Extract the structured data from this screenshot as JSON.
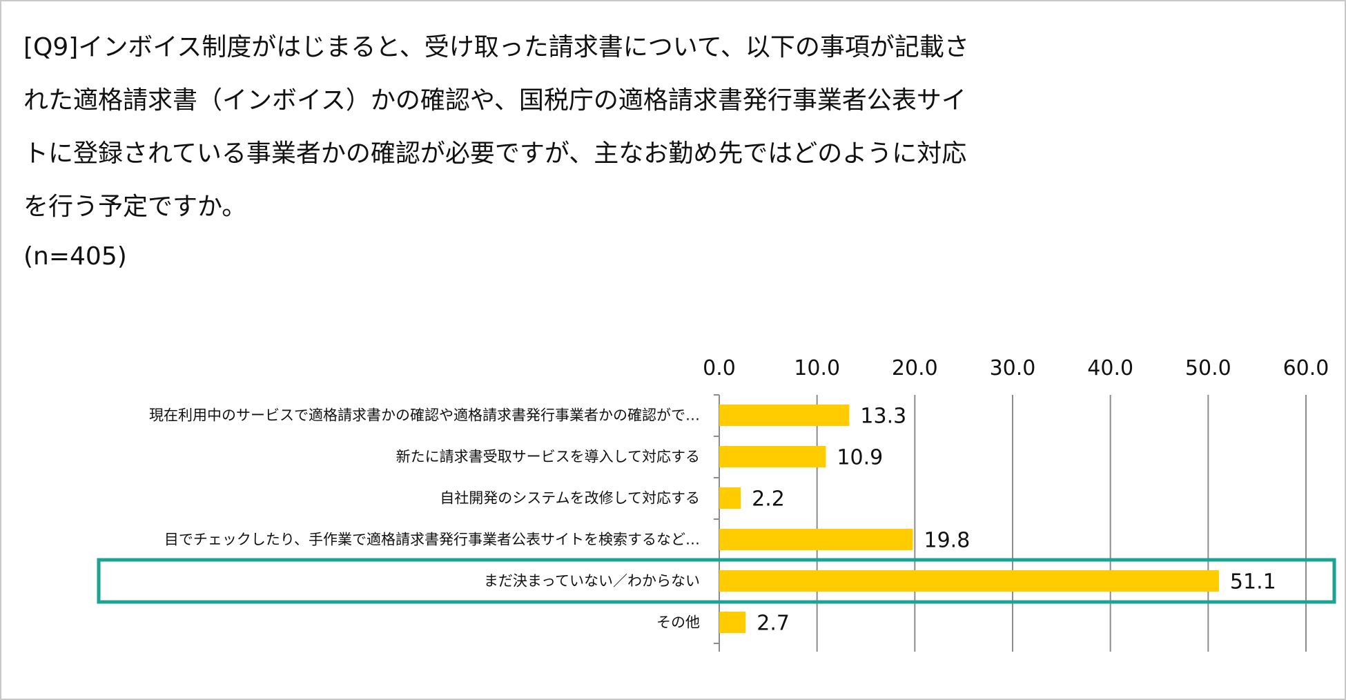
{
  "question": {
    "lines": [
      "[Q9]インボイス制度がはじまると、受け取った請求書について、以下の事項が記載さ",
      "れた適格請求書（インボイス）かの確認や、国税庁の適格請求書発行事業者公表サイ",
      "トに登録されている事業者かの確認が必要ですが、主なお勤め先ではどのように対応",
      "を行う予定ですか。"
    ],
    "sample_size": "(n=405)"
  },
  "chart_data": {
    "type": "bar",
    "orientation": "horizontal",
    "categories": [
      "現在利用中のサービスで適格請求書かの確認や適格請求書発行事業者かの確認がで…",
      "新たに請求書受取サービスを導入して対応する",
      "自社開発のシステムを改修して対応する",
      "目でチェックしたり、手作業で適格請求書発行事業者公表サイトを検索するなど…",
      "まだ決まっていない／わからない",
      "その他"
    ],
    "values": [
      13.3,
      10.9,
      2.2,
      19.8,
      51.1,
      2.7
    ],
    "value_labels": [
      "13.3",
      "10.9",
      "2.2",
      "19.8",
      "51.1",
      "2.7"
    ],
    "xlim": [
      0,
      60
    ],
    "xticks": [
      0,
      10,
      20,
      30,
      40,
      50,
      60
    ],
    "xtick_labels": [
      "0.0",
      "10.0",
      "20.0",
      "30.0",
      "40.0",
      "50.0",
      "60.0"
    ],
    "axis_position": "top",
    "grid": true,
    "highlighted_category_index": 4,
    "colors": {
      "bar": "#FFCC00",
      "grid": "#8c8c8c",
      "highlight_border": "#1BA393",
      "text": "#111111"
    }
  }
}
